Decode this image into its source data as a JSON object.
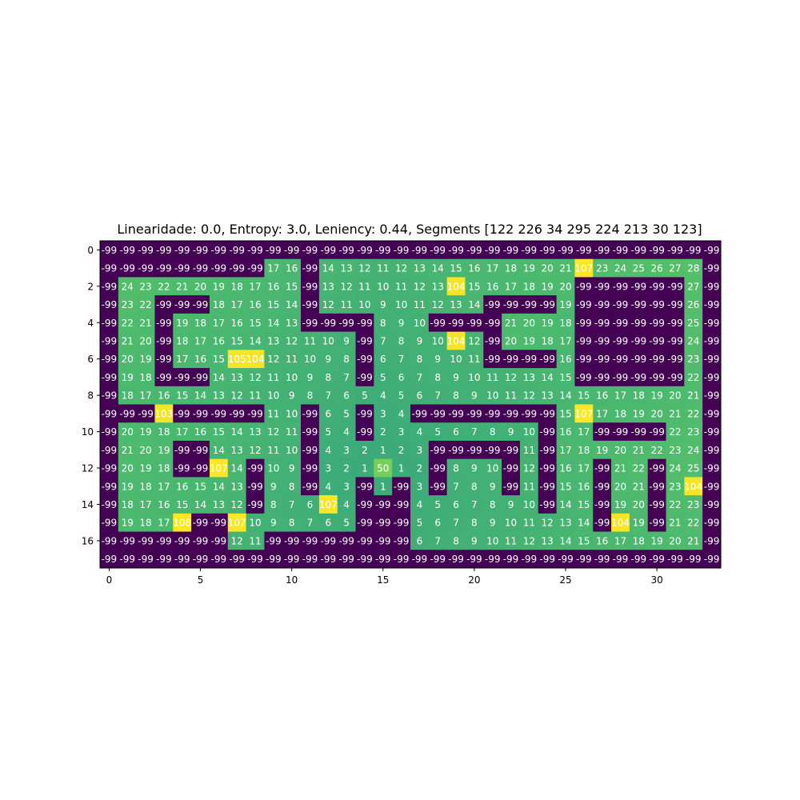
{
  "chart_data": {
    "type": "heatmap",
    "title": "Linearidade: 0.0, Entropy: 3.0, Leniency: 0.44, Segments [122 226  34 295 224 213  30 123]",
    "xlabel": "",
    "ylabel": "",
    "x_ticks": [
      0,
      5,
      10,
      15,
      20,
      25,
      30
    ],
    "y_ticks": [
      0,
      2,
      4,
      6,
      8,
      10,
      12,
      14,
      16
    ],
    "value_range": [
      -99,
      108
    ],
    "colormap": [
      "#440154",
      "#21918c",
      "#5ec962",
      "#fde725"
    ],
    "values": [
      [
        -99,
        -99,
        -99,
        -99,
        -99,
        -99,
        -99,
        -99,
        -99,
        -99,
        -99,
        -99,
        -99,
        -99,
        -99,
        -99,
        -99,
        -99,
        -99,
        -99,
        -99,
        -99,
        -99,
        -99,
        -99,
        -99,
        -99,
        -99,
        -99,
        -99,
        -99,
        -99,
        -99,
        -99
      ],
      [
        -99,
        -99,
        -99,
        -99,
        -99,
        -99,
        -99,
        -99,
        -99,
        17,
        16,
        -99,
        14,
        13,
        12,
        11,
        12,
        13,
        14,
        15,
        16,
        17,
        18,
        19,
        20,
        21,
        107,
        23,
        24,
        25,
        26,
        27,
        28,
        -99
      ],
      [
        -99,
        24,
        23,
        22,
        21,
        20,
        19,
        18,
        17,
        16,
        15,
        -99,
        13,
        12,
        11,
        10,
        11,
        12,
        13,
        104,
        15,
        16,
        17,
        18,
        19,
        20,
        -99,
        -99,
        -99,
        -99,
        -99,
        -99,
        27,
        -99
      ],
      [
        -99,
        23,
        22,
        -99,
        -99,
        -99,
        18,
        17,
        16,
        15,
        14,
        -99,
        12,
        11,
        10,
        9,
        10,
        11,
        12,
        13,
        14,
        -99,
        -99,
        -99,
        -99,
        19,
        -99,
        -99,
        -99,
        -99,
        -99,
        -99,
        26,
        -99
      ],
      [
        -99,
        22,
        21,
        -99,
        19,
        18,
        17,
        16,
        15,
        14,
        13,
        -99,
        -99,
        -99,
        -99,
        8,
        9,
        10,
        -99,
        -99,
        -99,
        -99,
        21,
        20,
        19,
        18,
        -99,
        -99,
        -99,
        -99,
        -99,
        -99,
        25,
        -99
      ],
      [
        -99,
        21,
        20,
        -99,
        18,
        17,
        16,
        15,
        14,
        13,
        12,
        11,
        10,
        9,
        -99,
        7,
        8,
        9,
        10,
        104,
        12,
        -99,
        20,
        19,
        18,
        17,
        -99,
        -99,
        -99,
        -99,
        -99,
        -99,
        24,
        -99
      ],
      [
        -99,
        20,
        19,
        -99,
        17,
        16,
        15,
        105,
        104,
        12,
        11,
        10,
        9,
        8,
        -99,
        6,
        7,
        8,
        9,
        10,
        11,
        -99,
        -99,
        -99,
        -99,
        16,
        -99,
        -99,
        -99,
        -99,
        -99,
        -99,
        23,
        -99
      ],
      [
        -99,
        19,
        18,
        -99,
        -99,
        -99,
        14,
        13,
        12,
        11,
        10,
        9,
        8,
        7,
        -99,
        5,
        6,
        7,
        8,
        9,
        10,
        11,
        12,
        13,
        14,
        15,
        -99,
        -99,
        -99,
        -99,
        -99,
        -99,
        22,
        -99
      ],
      [
        -99,
        18,
        17,
        16,
        15,
        14,
        13,
        12,
        11,
        10,
        9,
        8,
        7,
        6,
        5,
        4,
        5,
        6,
        7,
        8,
        9,
        10,
        11,
        12,
        13,
        14,
        15,
        16,
        17,
        18,
        19,
        20,
        21,
        -99
      ],
      [
        -99,
        -99,
        -99,
        103,
        -99,
        -99,
        -99,
        -99,
        -99,
        11,
        10,
        -99,
        6,
        5,
        -99,
        3,
        4,
        -99,
        -99,
        -99,
        -99,
        -99,
        -99,
        -99,
        -99,
        15,
        107,
        17,
        18,
        19,
        20,
        21,
        22,
        -99
      ],
      [
        -99,
        20,
        19,
        18,
        17,
        16,
        15,
        14,
        13,
        12,
        11,
        -99,
        5,
        4,
        -99,
        2,
        3,
        4,
        5,
        6,
        7,
        8,
        9,
        10,
        -99,
        16,
        17,
        -99,
        -99,
        -99,
        -99,
        22,
        23,
        -99
      ],
      [
        -99,
        21,
        20,
        19,
        -99,
        -99,
        14,
        13,
        12,
        11,
        10,
        -99,
        4,
        3,
        2,
        1,
        2,
        3,
        -99,
        -99,
        -99,
        -99,
        -99,
        11,
        -99,
        17,
        18,
        19,
        20,
        21,
        22,
        23,
        24,
        -99
      ],
      [
        -99,
        20,
        19,
        18,
        -99,
        -99,
        107,
        14,
        -99,
        10,
        9,
        -99,
        3,
        2,
        1,
        50,
        1,
        2,
        -99,
        8,
        9,
        10,
        -99,
        12,
        -99,
        16,
        17,
        -99,
        21,
        22,
        -99,
        24,
        25,
        -99
      ],
      [
        -99,
        19,
        18,
        17,
        16,
        15,
        14,
        13,
        -99,
        9,
        8,
        -99,
        4,
        3,
        -99,
        1,
        -99,
        3,
        -99,
        7,
        8,
        9,
        -99,
        11,
        -99,
        15,
        16,
        -99,
        20,
        21,
        -99,
        23,
        104,
        -99
      ],
      [
        -99,
        18,
        17,
        16,
        15,
        14,
        13,
        12,
        -99,
        8,
        7,
        6,
        107,
        4,
        -99,
        -99,
        -99,
        4,
        5,
        6,
        7,
        8,
        9,
        10,
        -99,
        14,
        15,
        -99,
        19,
        20,
        -99,
        22,
        23,
        -99
      ],
      [
        -99,
        19,
        18,
        17,
        108,
        -99,
        -99,
        107,
        10,
        9,
        8,
        7,
        6,
        5,
        -99,
        -99,
        -99,
        5,
        6,
        7,
        8,
        9,
        10,
        11,
        12,
        13,
        14,
        -99,
        104,
        19,
        -99,
        21,
        22,
        -99
      ],
      [
        -99,
        -99,
        -99,
        -99,
        -99,
        -99,
        -99,
        12,
        11,
        -99,
        -99,
        -99,
        -99,
        -99,
        -99,
        -99,
        -99,
        6,
        7,
        8,
        9,
        10,
        11,
        12,
        13,
        14,
        15,
        16,
        17,
        18,
        19,
        20,
        21,
        -99
      ],
      [
        -99,
        -99,
        -99,
        -99,
        -99,
        -99,
        -99,
        -99,
        -99,
        -99,
        -99,
        -99,
        -99,
        -99,
        -99,
        -99,
        -99,
        -99,
        -99,
        -99,
        -99,
        -99,
        -99,
        -99,
        -99,
        -99,
        -99,
        -99,
        -99,
        -99,
        -99,
        -99,
        -99,
        -99
      ]
    ]
  }
}
